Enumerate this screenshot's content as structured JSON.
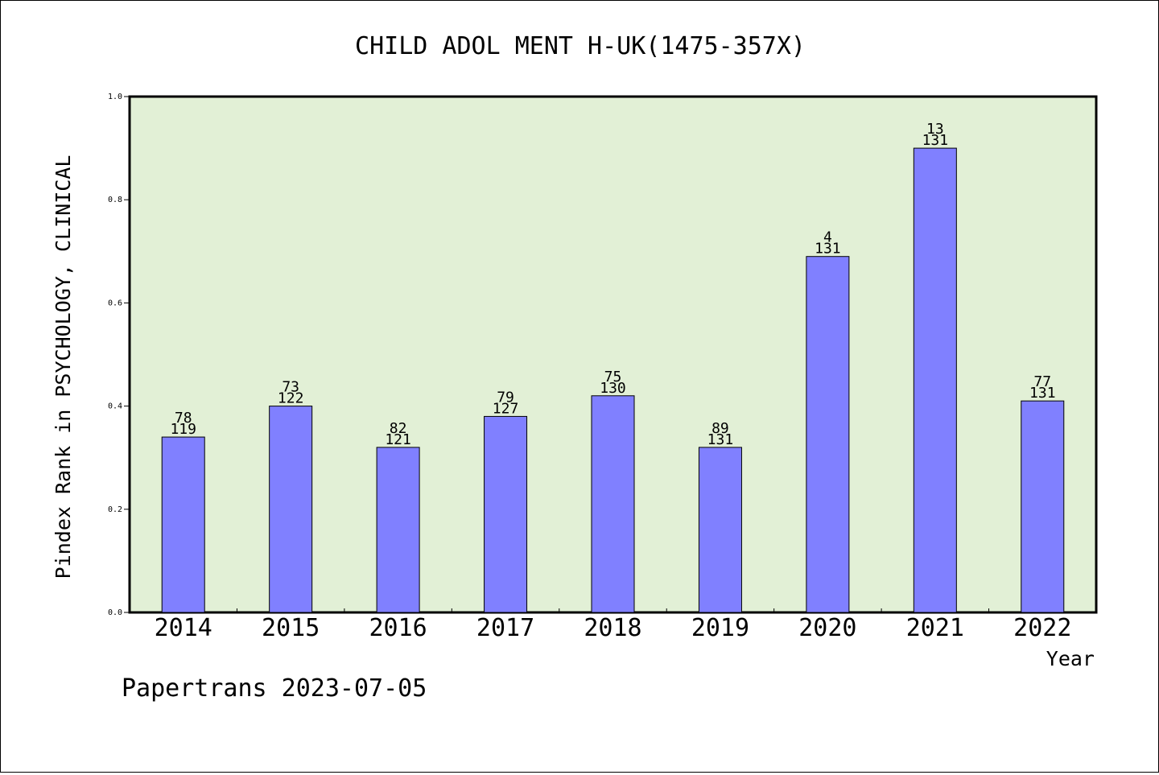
{
  "chart_data": {
    "type": "bar",
    "title": "CHILD ADOL MENT H-UK(1475-357X)",
    "xlabel": "Year",
    "ylabel": "Pindex Rank in PSYCHOLOGY, CLINICAL",
    "footer": "Papertrans 2023-07-05",
    "categories": [
      "2014",
      "2015",
      "2016",
      "2017",
      "2018",
      "2019",
      "2020",
      "2021",
      "2022"
    ],
    "values": [
      0.34,
      0.4,
      0.32,
      0.38,
      0.42,
      0.32,
      0.69,
      0.9,
      0.41
    ],
    "rank_labels": [
      "78",
      "73",
      "82",
      "79",
      "75",
      "89",
      "4",
      "13",
      "77"
    ],
    "total_labels": [
      "119",
      "122",
      "121",
      "127",
      "130",
      "131",
      "131",
      "131",
      "131"
    ],
    "ylim": [
      0,
      1.0
    ],
    "yticks": [
      "0.0",
      "0.2",
      "0.4",
      "0.6",
      "0.8",
      "1.0"
    ],
    "ytick_values": [
      0,
      0.2,
      0.4,
      0.6,
      0.8,
      1.0
    ],
    "grid": false,
    "colors": {
      "bar_fill": "#8080ff",
      "plot_background": "#e2f0d6",
      "axis": "#000000"
    }
  }
}
